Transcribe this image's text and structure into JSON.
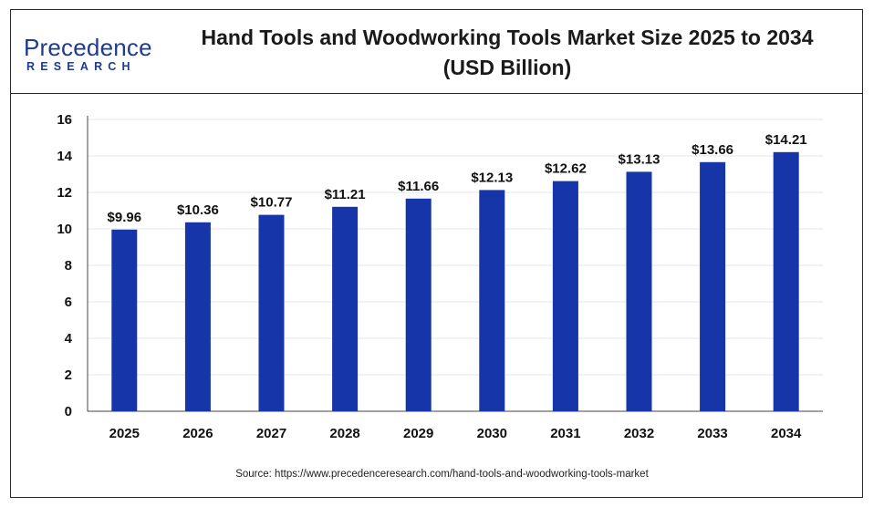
{
  "header": {
    "logo_main": "Precedence",
    "logo_sub": "RESEARCH",
    "title_line1": "Hand Tools and Woodworking Tools Market Size 2025 to 2034",
    "title_line2": "(USD Billion)"
  },
  "source": "Source: https://www.precedenceresearch.com/hand-tools-and-woodworking-tools-market",
  "colors": {
    "bar": "#1535a8",
    "brand": "#1e3b8f",
    "axis": "#444444",
    "grid": "#e6e6e6"
  },
  "chart_data": {
    "type": "bar",
    "categories": [
      "2025",
      "2026",
      "2027",
      "2028",
      "2029",
      "2030",
      "2031",
      "2032",
      "2033",
      "2034"
    ],
    "values": [
      9.96,
      10.36,
      10.77,
      11.21,
      11.66,
      12.13,
      12.62,
      13.13,
      13.66,
      14.21
    ],
    "data_labels": [
      "$9.96",
      "$10.36",
      "$10.77",
      "$11.21",
      "$11.66",
      "$12.13",
      "$12.62",
      "$13.13",
      "$13.66",
      "$14.21"
    ],
    "ylim": [
      0,
      16
    ],
    "yticks": [
      0,
      2,
      4,
      6,
      8,
      10,
      12,
      14,
      16
    ],
    "grid": true,
    "legend": "none"
  }
}
